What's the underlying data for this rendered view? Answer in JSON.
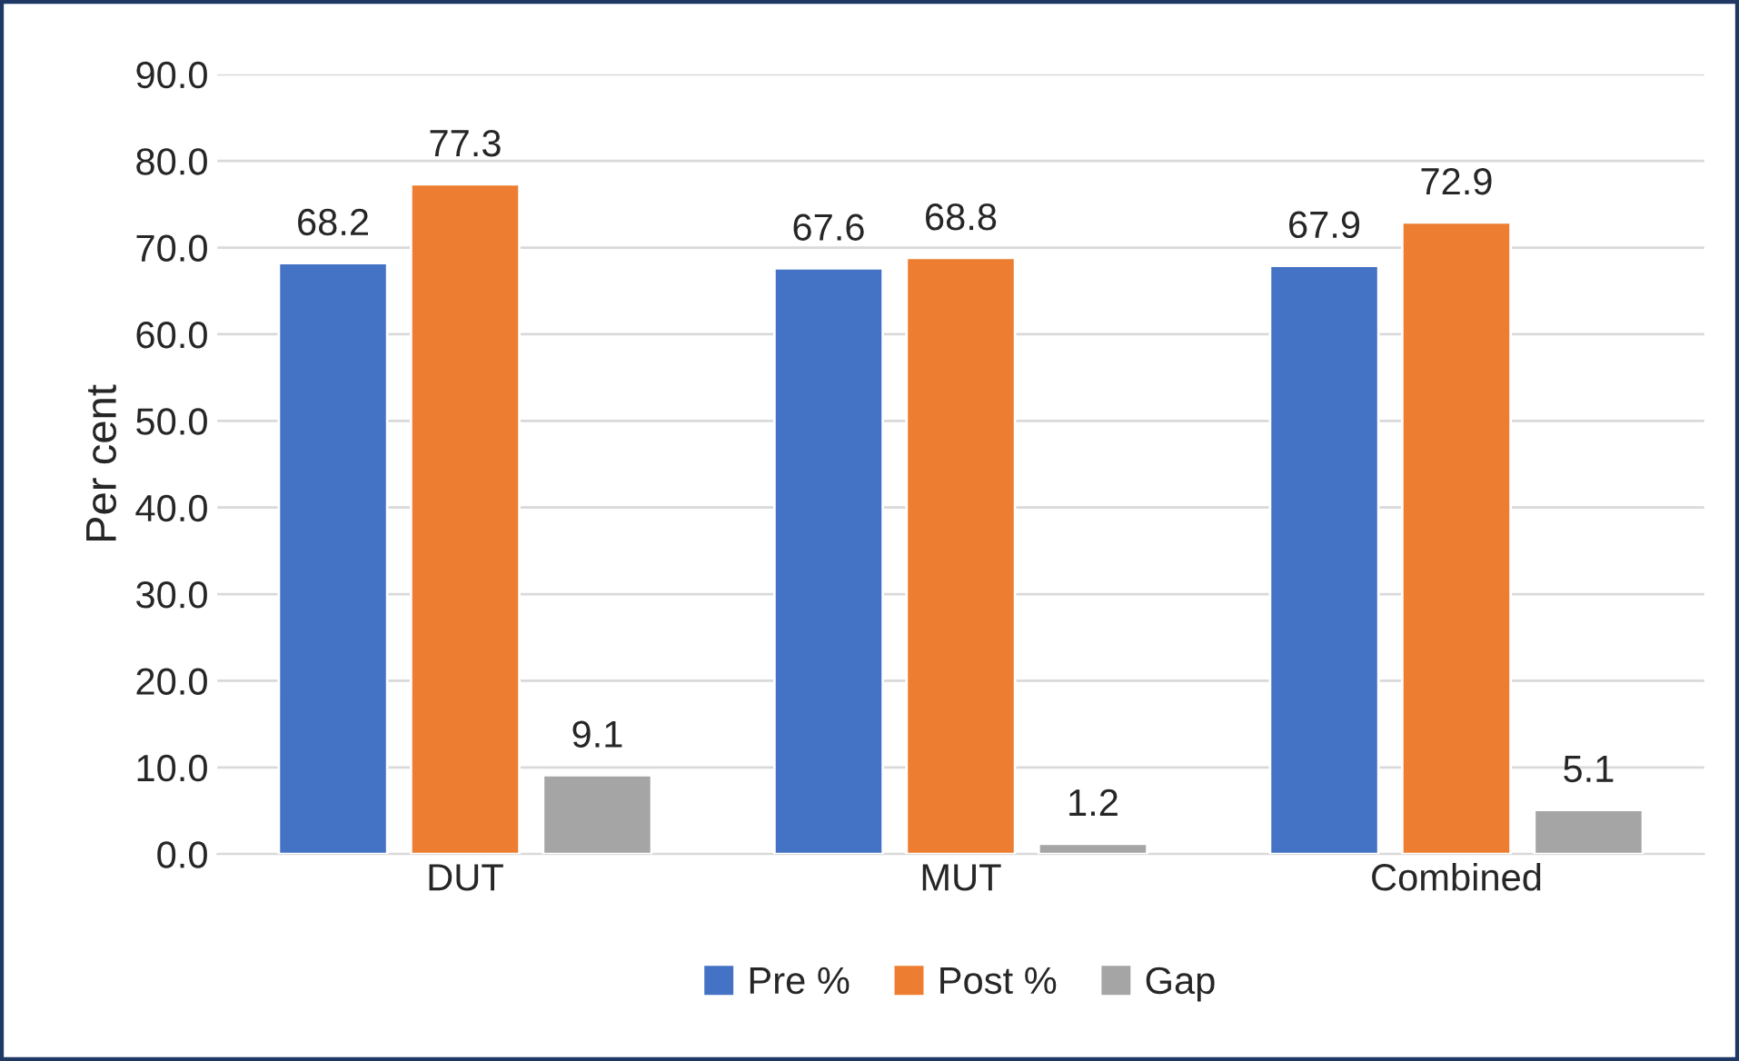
{
  "chart_data": {
    "type": "bar",
    "ylabel": "Per cent",
    "categories": [
      "DUT",
      "MUT",
      "Combined"
    ],
    "series": [
      {
        "name": "Pre %",
        "color": "#4472c4",
        "values": [
          68.2,
          67.6,
          67.9
        ]
      },
      {
        "name": "Post %",
        "color": "#ed7d31",
        "values": [
          77.3,
          68.8,
          72.9
        ]
      },
      {
        "name": "Gap",
        "color": "#a5a5a5",
        "values": [
          9.1,
          1.2,
          5.1
        ]
      }
    ],
    "ylim": [
      0,
      90
    ],
    "yticks": [
      {
        "value": 0,
        "label": "0.0"
      },
      {
        "value": 10,
        "label": "10.0"
      },
      {
        "value": 20,
        "label": "20.0"
      },
      {
        "value": 30,
        "label": "30.0"
      },
      {
        "value": 40,
        "label": "40.0"
      },
      {
        "value": 50,
        "label": "50.0"
      },
      {
        "value": 60,
        "label": "60.0"
      },
      {
        "value": 70,
        "label": "70.0"
      },
      {
        "value": 80,
        "label": "80.0"
      },
      {
        "value": 90,
        "label": "90.0"
      }
    ],
    "grid": "y",
    "legend": "bottom",
    "data_labels": true
  }
}
